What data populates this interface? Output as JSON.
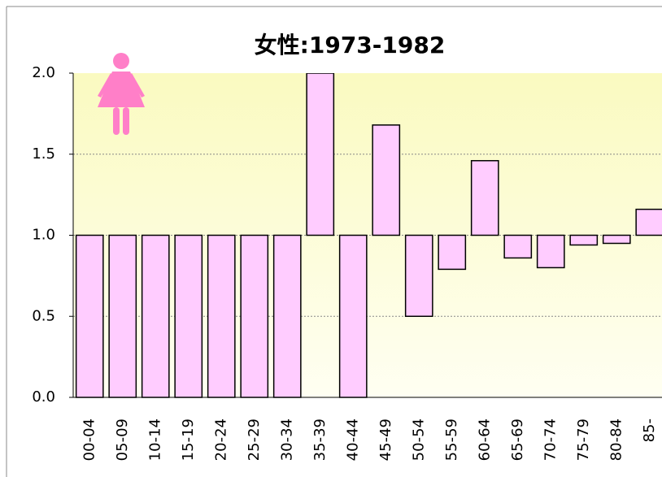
{
  "chart_data": {
    "type": "bar",
    "title": "女性:1973-1982",
    "categories": [
      "00-04",
      "05-09",
      "10-14",
      "15-19",
      "20-24",
      "25-29",
      "30-34",
      "35-39",
      "40-44",
      "45-49",
      "50-54",
      "55-59",
      "60-64",
      "65-69",
      "70-74",
      "75-79",
      "80-84",
      "85-"
    ],
    "values": [
      0,
      0,
      0,
      0,
      0,
      0,
      0,
      2.0,
      0,
      1.68,
      0.5,
      0.79,
      1.46,
      0.86,
      0.8,
      0.94,
      0.95,
      1.16
    ],
    "baseline": 1.0,
    "color": "#ffccff",
    "ylim": [
      0,
      2
    ],
    "yticks": [
      {
        "value": 0,
        "label": "0.0"
      },
      {
        "value": 0.5,
        "label": "0.5"
      },
      {
        "value": 1,
        "label": "1.0"
      },
      {
        "value": 1.5,
        "label": "1.5"
      },
      {
        "value": 2,
        "label": "2.0"
      }
    ],
    "grid": true
  }
}
